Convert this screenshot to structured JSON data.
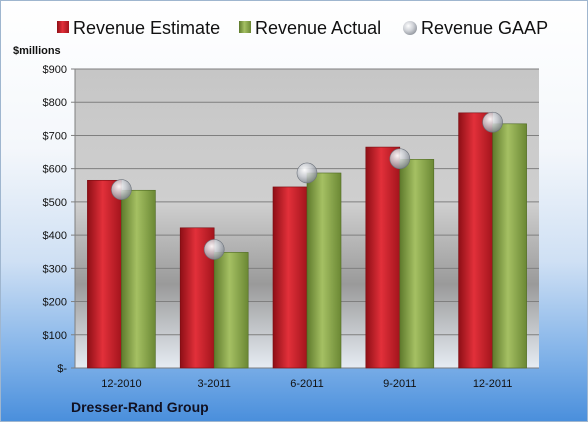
{
  "chart_data": {
    "type": "bar",
    "title": "",
    "ylabel": "$millions",
    "xlabel": "",
    "company": "Dresser-Rand Group",
    "categories": [
      "12-2010",
      "3-2011",
      "6-2011",
      "9-2011",
      "12-2011"
    ],
    "ylim": [
      0,
      900
    ],
    "yticks": [
      0,
      100,
      200,
      300,
      400,
      500,
      600,
      700,
      800,
      900
    ],
    "ytick_labels": [
      "$-",
      "$100",
      "$200",
      "$300",
      "$400",
      "$500",
      "$600",
      "$700",
      "$800",
      "$900"
    ],
    "grid": true,
    "legend_position": "top",
    "series": [
      {
        "name": "Revenue Estimate",
        "kind": "bar",
        "color": "#d01f2a",
        "values": [
          565,
          422,
          545,
          665,
          768
        ]
      },
      {
        "name": "Revenue Actual",
        "kind": "bar",
        "color": "#86a34b",
        "values": [
          535,
          348,
          587,
          628,
          735
        ]
      },
      {
        "name": "Revenue GAAP",
        "kind": "marker",
        "color": "#b8bcc4",
        "values": [
          537,
          357,
          587,
          630,
          740
        ]
      }
    ]
  }
}
